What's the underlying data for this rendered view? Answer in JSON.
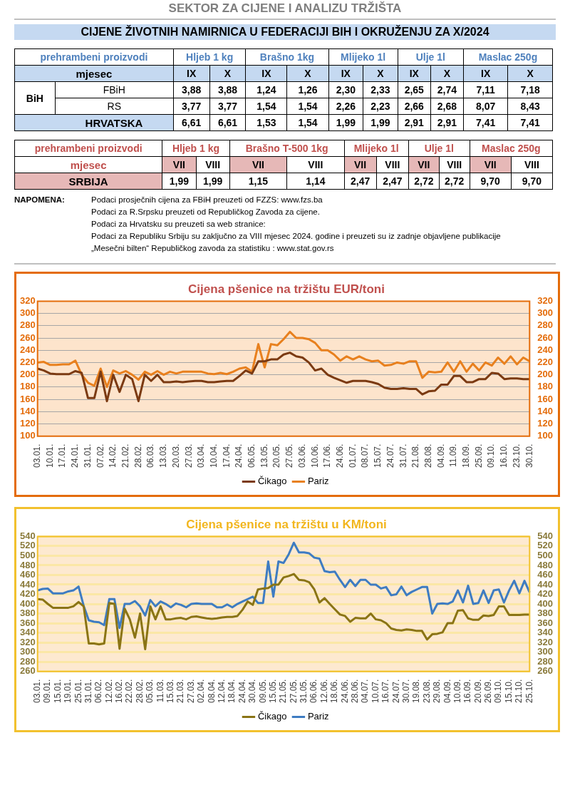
{
  "chart_data": [
    {
      "type": "heatmap",
      "title": "CIJENE ŽIVOTNIH NAMIRNICA U FEDERACIJI BIH I OKRUŽENJU ZA  X/2024",
      "annotations": [
        "SEKTOR ZA CIJENE I ANALIZU TRŽIŠTA",
        "prehrambeni proizvodi",
        "Hljeb 1 kg",
        "Brašno 1kg",
        "Mlijeko 1l",
        "Ulje 1l",
        "Maslac 250g",
        "mjesec",
        "BiH"
      ],
      "categories": [
        "IX",
        "X",
        "IX",
        "X",
        "IX",
        "X",
        "IX",
        "X",
        "IX",
        "X"
      ],
      "y_categories": [
        "FBiH",
        "RS",
        "HRVATSKA"
      ],
      "cells": [
        [
          3.88,
          3.88,
          1.24,
          1.26,
          2.3,
          2.33,
          2.65,
          2.74,
          7.11,
          7.18
        ],
        [
          3.77,
          3.77,
          1.54,
          1.54,
          2.26,
          2.23,
          2.66,
          2.68,
          8.07,
          8.43
        ],
        [
          6.61,
          6.61,
          1.53,
          1.54,
          1.99,
          1.99,
          2.91,
          2.91,
          7.41,
          7.41
        ]
      ],
      "cell_labels": [
        [
          "3,88",
          "3,88",
          "1,24",
          "1,26",
          "2,30",
          "2,33",
          "2,65",
          "2,74",
          "7,11",
          "7,18"
        ],
        [
          "3,77",
          "3,77",
          "1,54",
          "1,54",
          "2,26",
          "2,23",
          "2,66",
          "2,68",
          "8,07",
          "8,43"
        ],
        [
          "6,61",
          "6,61",
          "1,53",
          "1,54",
          "1,99",
          "1,99",
          "2,91",
          "2,91",
          "7,41",
          "7,41"
        ]
      ]
    },
    {
      "type": "heatmap",
      "annotations": [
        "prehrambeni proizvodi",
        "Hljeb 1 kg",
        "Brašno T-500 1kg",
        "Mlijeko  1l",
        "Ulje 1l",
        "Maslac 250g",
        "mjesec",
        "NAPOMENA:",
        "Podaci prosječnih cijena za FBiH preuzeti od  FZZS: www.fzs.ba",
        "Podaci za R.Srpsku preuzeti od Republičkog Zavoda za cijene.",
        "Podaci za Hrvatsku su preuzeti sa web stranice:",
        "Podaci za Republiku Srbiju su zaključno za VIII mjesec  2024. godine i preuzeti su iz zadnje objavljene publikacije",
        "„Mesečni bilten“  Republičkog zavoda za statistiku : www.stat.gov.rs"
      ],
      "categories": [
        "VII",
        "VIII",
        "VII",
        "VIII",
        "VII",
        "VIII",
        "VII",
        "VIII",
        "VII",
        "VIII"
      ],
      "y_categories": [
        "SRBIJA"
      ],
      "cells": [
        [
          1.99,
          1.99,
          1.15,
          1.14,
          2.47,
          2.47,
          2.72,
          2.72,
          9.7,
          9.7
        ]
      ],
      "cell_labels": [
        [
          "1,99",
          "1,99",
          "1,15",
          "1,14",
          "2,47",
          "2,47",
          "2,72",
          "2,72",
          "9,70",
          "9,70"
        ]
      ]
    },
    {
      "type": "line",
      "title": "Cijena pšenice na tržištu EUR/toni",
      "categories": [
        "03.01.",
        null,
        "10.01.",
        null,
        "17.01.",
        null,
        "24.01.",
        null,
        "31.01.",
        null,
        "07.02.",
        null,
        "14.02.",
        null,
        "21.02.",
        null,
        "28.02.",
        null,
        "06.03.",
        null,
        "13.03.",
        null,
        "20.03.",
        null,
        "27.03.",
        null,
        "03.04.",
        null,
        "10.04.",
        null,
        "17.04.",
        null,
        "24.04.",
        null,
        "06.05.",
        null,
        "13.05.",
        null,
        "20.05.",
        null,
        "27.05.",
        null,
        "03.06.",
        null,
        "10.06.",
        null,
        "17.06.",
        null,
        "24.06.",
        null,
        "01.07.",
        null,
        "08.07.",
        null,
        "15.07.",
        null,
        "24.07.",
        null,
        "31.07.",
        null,
        "21.08.",
        null,
        "28.08.",
        null,
        "04.09.",
        null,
        "11.09.",
        null,
        "18.09.",
        null,
        "25.09.",
        null,
        "09.10.",
        null,
        "16.10.",
        null,
        "23.10.",
        null,
        "30.10."
      ],
      "series": [
        {
          "name": "Čikago",
          "color": "#7b3a12",
          "values": [
            210,
            207,
            202,
            201,
            201,
            201,
            206,
            203,
            162,
            162,
            205,
            157,
            200,
            172,
            200,
            193,
            157,
            200,
            190,
            200,
            188,
            188,
            189,
            188,
            189,
            190,
            190,
            188,
            188,
            189,
            190,
            190,
            198,
            207,
            202,
            222,
            222,
            225,
            225,
            233,
            236,
            230,
            228,
            220,
            207,
            210,
            200,
            195,
            191,
            187,
            190,
            190,
            190,
            188,
            185,
            179,
            177,
            177,
            178,
            177,
            177,
            168,
            173,
            174,
            184,
            184,
            198,
            198,
            188,
            188,
            193,
            193,
            203,
            202,
            193,
            194,
            194,
            193,
            193
          ]
        },
        {
          "name": "Pariz",
          "color": "#e8801e",
          "values": [
            220,
            221,
            216,
            216,
            217,
            217,
            223,
            200,
            187,
            182,
            210,
            180,
            207,
            202,
            206,
            200,
            192,
            205,
            200,
            206,
            200,
            205,
            202,
            205,
            205,
            205,
            205,
            202,
            201,
            203,
            201,
            205,
            210,
            212,
            205,
            250,
            212,
            250,
            248,
            258,
            270,
            260,
            260,
            258,
            252,
            240,
            240,
            233,
            223,
            230,
            225,
            230,
            225,
            222,
            223,
            215,
            216,
            220,
            218,
            222,
            222,
            195,
            205,
            204,
            205,
            220,
            205,
            222,
            205,
            218,
            207,
            220,
            215,
            228,
            218,
            230,
            217,
            228,
            222
          ]
        }
      ],
      "ylim": [
        100,
        320
      ],
      "yticks": [
        100,
        120,
        140,
        160,
        180,
        200,
        220,
        240,
        260,
        280,
        300,
        320
      ],
      "y2lim": [
        100,
        320
      ],
      "y2ticks": [
        100,
        120,
        140,
        160,
        180,
        200,
        220,
        240,
        260,
        280,
        300,
        320
      ],
      "grid": "y",
      "legend": "bottom",
      "marker": "none",
      "line_style": "solid"
    },
    {
      "type": "line",
      "title": "Cijena pšenice na tržištu u KM/toni",
      "categories": [
        "03.01.",
        null,
        "09.01.",
        null,
        "15.01.",
        null,
        "19.01.",
        null,
        "25.01.",
        null,
        "31.01.",
        null,
        "06.02.",
        null,
        "12.02.",
        null,
        "16.02.",
        null,
        "22.02.",
        null,
        "28.02.",
        null,
        "05.03.",
        null,
        "11.03.",
        null,
        "15.03.",
        null,
        "21.03.",
        null,
        "27.03.",
        null,
        "02.04.",
        null,
        "08.04.",
        null,
        "12.04.",
        null,
        "18.04.",
        null,
        "24.04.",
        null,
        "30.04.",
        null,
        "09.05.",
        null,
        "15.05.",
        null,
        "21.05.",
        null,
        "27.05.",
        null,
        "31.05.",
        null,
        "06.06.",
        null,
        "12.06.",
        null,
        "18.06.",
        null,
        "24.06.",
        null,
        "28.06.",
        null,
        "04.07.",
        null,
        "10.07.",
        null,
        "16.07.",
        null,
        "24.07.",
        null,
        "30.07.",
        null,
        "19.08.",
        null,
        "23.08.",
        null,
        "29.08.",
        null,
        "04.09.",
        null,
        "10.09.",
        null,
        "16.09.",
        null,
        "20.09.",
        null,
        "26.09.",
        null,
        "09.10.",
        null,
        "15.10.",
        null,
        "21.10.",
        null,
        "25.10."
      ],
      "series": [
        {
          "name": "Čikago",
          "color": "#8a7415",
          "values": [
            410,
            409,
            400,
            392,
            392,
            392,
            392,
            395,
            404,
            395,
            318,
            318,
            316,
            318,
            402,
            400,
            307,
            390,
            368,
            330,
            380,
            306,
            395,
            368,
            395,
            368,
            368,
            370,
            371,
            368,
            373,
            374,
            372,
            370,
            369,
            370,
            372,
            373,
            373,
            375,
            388,
            405,
            398,
            430,
            432,
            433,
            440,
            440,
            455,
            458,
            462,
            450,
            449,
            445,
            430,
            403,
            412,
            400,
            389,
            378,
            375,
            363,
            371,
            370,
            370,
            380,
            368,
            366,
            360,
            349,
            346,
            345,
            347,
            346,
            344,
            344,
            326,
            337,
            338,
            341,
            360,
            360,
            386,
            387,
            370,
            367,
            367,
            376,
            375,
            377,
            395,
            395,
            377,
            377,
            377,
            378,
            378
          ]
        },
        {
          "name": "Pariz",
          "color": "#3e7cc2",
          "values": [
            428,
            431,
            432,
            422,
            422,
            422,
            426,
            428,
            436,
            396,
            366,
            363,
            362,
            356,
            410,
            410,
            350,
            400,
            400,
            406,
            395,
            376,
            408,
            395,
            405,
            400,
            393,
            401,
            398,
            393,
            400,
            401,
            400,
            400,
            400,
            393,
            393,
            399,
            393,
            400,
            405,
            410,
            415,
            402,
            402,
            488,
            415,
            488,
            485,
            503,
            527,
            507,
            507,
            505,
            496,
            494,
            468,
            466,
            467,
            450,
            435,
            450,
            437,
            450,
            450,
            440,
            440,
            432,
            435,
            418,
            420,
            436,
            418,
            425,
            430,
            435,
            435,
            380,
            400,
            401,
            400,
            405,
            428,
            403,
            438,
            400,
            402,
            428,
            402,
            428,
            430,
            403,
            428,
            448,
            422,
            448,
            424
          ]
        }
      ],
      "ylim": [
        260,
        540
      ],
      "yticks": [
        260,
        280,
        300,
        320,
        340,
        360,
        380,
        400,
        420,
        440,
        460,
        480,
        500,
        520,
        540
      ],
      "y2lim": [
        260,
        540
      ],
      "y2ticks": [
        260,
        280,
        300,
        320,
        340,
        360,
        380,
        400,
        420,
        440,
        460,
        480,
        500,
        520,
        540
      ],
      "grid": "y",
      "legend": "bottom",
      "marker": "none",
      "line_style": "solid"
    }
  ]
}
